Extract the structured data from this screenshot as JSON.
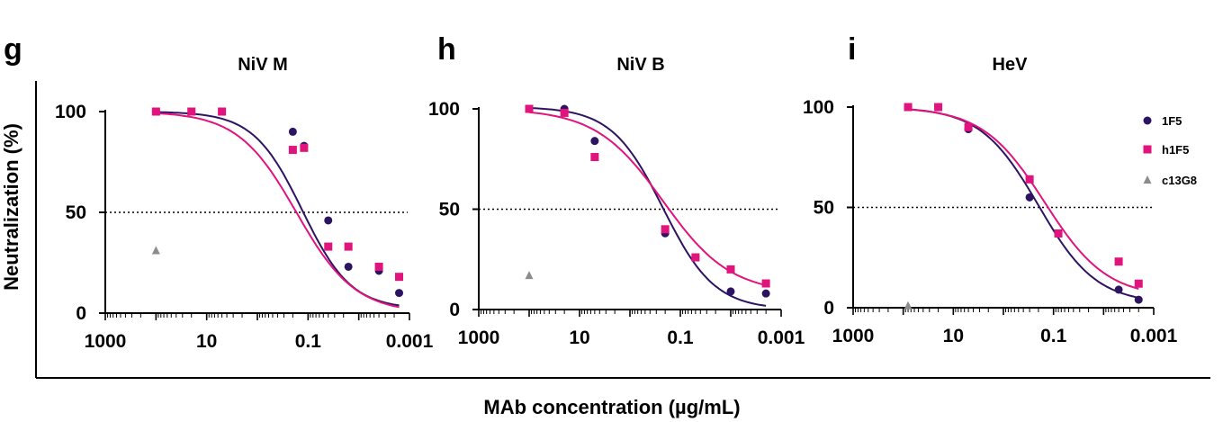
{
  "xlabel": "MAb concentration (µg/mL)",
  "ylabel": "Neutralization (%)",
  "colors": {
    "1F5": "#2d1463",
    "h1F5": "#e0147c",
    "c13G8": "#8c8c8c"
  },
  "legend": [
    {
      "name": "1F5",
      "marker": "circle",
      "color": "#2d1463"
    },
    {
      "name": "h1F5",
      "marker": "square",
      "color": "#e0147c"
    },
    {
      "name": "c13G8",
      "marker": "triangle",
      "color": "#8c8c8c"
    }
  ],
  "chart_data": [
    {
      "panel": "g",
      "type": "scatter",
      "title": "NiV M",
      "x_scale": "log-reversed",
      "xlim": [
        1000,
        0.001
      ],
      "ylim": [
        0,
        100
      ],
      "x_ticks": [
        "1000",
        "10",
        "0.1",
        "0.001"
      ],
      "x_tick_values": [
        1000,
        10,
        0.1,
        0.001
      ],
      "y_ticks": [
        "0",
        "50",
        "100"
      ],
      "y_tick_values": [
        0,
        50,
        100
      ],
      "reference_line": 50,
      "series": [
        {
          "name": "1F5",
          "marker": "circle",
          "x": [
            100,
            0.2,
            0.12,
            0.04,
            0.016,
            0.004,
            0.0016
          ],
          "y": [
            100,
            90,
            83,
            46,
            23,
            21,
            10
          ],
          "fit": {
            "top": 100,
            "bottom": 2,
            "ec50": 0.13,
            "hill": 0.9
          }
        },
        {
          "name": "h1F5",
          "marker": "square",
          "x": [
            100,
            20,
            5,
            0.2,
            0.12,
            0.04,
            0.016,
            0.004,
            0.0016
          ],
          "y": [
            100,
            100,
            100,
            81,
            82,
            33,
            33,
            23,
            18
          ],
          "fit": {
            "top": 100,
            "bottom": 0,
            "ec50": 0.17,
            "hill": 0.75
          }
        },
        {
          "name": "c13G8",
          "marker": "triangle",
          "x": [
            100
          ],
          "y": [
            31
          ]
        }
      ]
    },
    {
      "panel": "h",
      "type": "scatter",
      "title": "NiV B",
      "x_scale": "log-reversed",
      "xlim": [
        1000,
        0.001
      ],
      "ylim": [
        0,
        100
      ],
      "x_ticks": [
        "1000",
        "10",
        "0.1",
        "0.001"
      ],
      "x_tick_values": [
        1000,
        10,
        0.1,
        0.001
      ],
      "y_ticks": [
        "0",
        "50",
        "100"
      ],
      "y_tick_values": [
        0,
        50,
        100
      ],
      "reference_line": 50,
      "series": [
        {
          "name": "1F5",
          "marker": "circle",
          "x": [
            100,
            20,
            5,
            0.2,
            0.05,
            0.01,
            0.002
          ],
          "y": [
            100,
            100,
            84,
            38,
            26,
            9,
            8
          ],
          "fit": {
            "top": 101,
            "bottom": 0,
            "ec50": 0.22,
            "hill": 0.85
          }
        },
        {
          "name": "h1F5",
          "marker": "square",
          "x": [
            100,
            20,
            5,
            0.2,
            0.05,
            0.01,
            0.002
          ],
          "y": [
            100,
            98,
            76,
            40,
            26,
            20,
            13
          ],
          "fit": {
            "top": 100,
            "bottom": 8,
            "ec50": 0.22,
            "hill": 0.65
          }
        },
        {
          "name": "c13G8",
          "marker": "triangle",
          "x": [
            100
          ],
          "y": [
            17
          ]
        }
      ]
    },
    {
      "panel": "i",
      "type": "scatter",
      "title": "HeV",
      "x_scale": "log-reversed",
      "xlim": [
        1000,
        0.001
      ],
      "ylim": [
        0,
        100
      ],
      "x_ticks": [
        "1000",
        "10",
        "0.1",
        "0.001"
      ],
      "x_tick_values": [
        1000,
        10,
        0.1,
        0.001
      ],
      "y_ticks": [
        "0",
        "50",
        "100"
      ],
      "y_tick_values": [
        0,
        50,
        100
      ],
      "reference_line": 50,
      "series": [
        {
          "name": "1F5",
          "marker": "circle",
          "x": [
            80,
            20,
            5,
            0.3,
            0.08,
            0.005,
            0.002
          ],
          "y": [
            100,
            100,
            89,
            55,
            37,
            9,
            4
          ],
          "fit": {
            "top": 100,
            "bottom": 2,
            "ec50": 0.2,
            "hill": 0.75
          }
        },
        {
          "name": "h1F5",
          "marker": "square",
          "x": [
            80,
            20,
            5,
            0.3,
            0.08,
            0.005,
            0.002
          ],
          "y": [
            100,
            100,
            90,
            64,
            37,
            23,
            12
          ],
          "fit": {
            "top": 100,
            "bottom": 5,
            "ec50": 0.15,
            "hill": 0.7
          }
        },
        {
          "name": "c13G8",
          "marker": "triangle",
          "x": [
            80
          ],
          "y": [
            1
          ]
        }
      ]
    }
  ]
}
